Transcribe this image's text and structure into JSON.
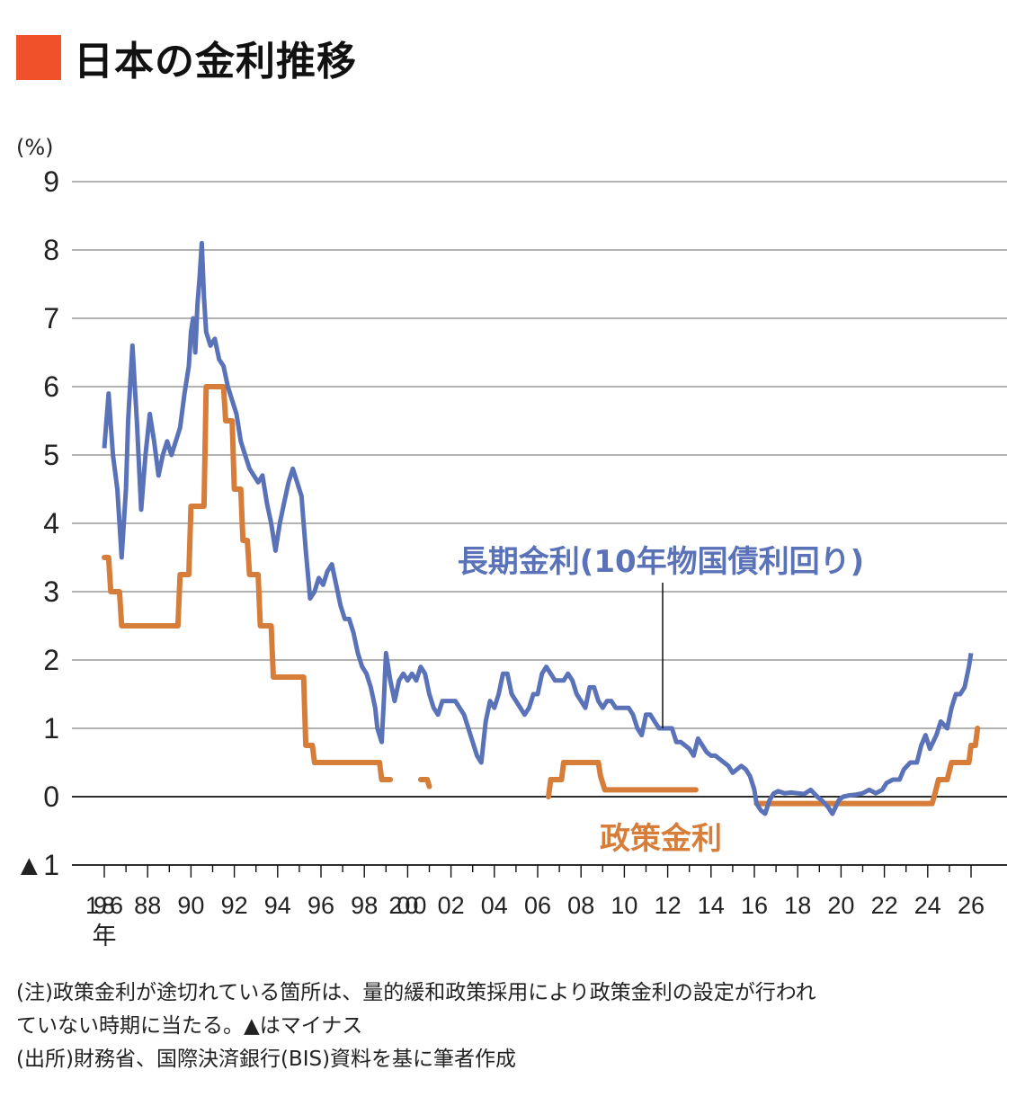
{
  "title": "日本の金利推移",
  "colors": {
    "title_mark": "#f0502a",
    "long_rate": "#5a72b8",
    "policy_rate": "#d67d3a",
    "grid": "#9a9a9a",
    "axis": "#111111"
  },
  "chart_data": {
    "type": "line",
    "unit_label": "(%)",
    "ylim": [
      -1,
      9
    ],
    "y_ticks": [
      {
        "v": 9,
        "label": "9"
      },
      {
        "v": 8,
        "label": "8"
      },
      {
        "v": 7,
        "label": "7"
      },
      {
        "v": 6,
        "label": "6"
      },
      {
        "v": 5,
        "label": "5"
      },
      {
        "v": 4,
        "label": "4"
      },
      {
        "v": 3,
        "label": "3"
      },
      {
        "v": 2,
        "label": "2"
      },
      {
        "v": 1,
        "label": "1"
      },
      {
        "v": 0,
        "label": "0"
      },
      {
        "v": -1,
        "label": "▲1"
      }
    ],
    "xlim": [
      1985.5,
      2026.5
    ],
    "x_ticks": [
      {
        "v": 1986,
        "label": "1986"
      },
      {
        "v": 1988,
        "label": "88"
      },
      {
        "v": 1990,
        "label": "90"
      },
      {
        "v": 1992,
        "label": "92"
      },
      {
        "v": 1994,
        "label": "94"
      },
      {
        "v": 1996,
        "label": "96"
      },
      {
        "v": 1998,
        "label": "98"
      },
      {
        "v": 2000,
        "label": "2000"
      },
      {
        "v": 2002,
        "label": "02"
      },
      {
        "v": 2004,
        "label": "04"
      },
      {
        "v": 2006,
        "label": "06"
      },
      {
        "v": 2008,
        "label": "08"
      },
      {
        "v": 2010,
        "label": "10"
      },
      {
        "v": 2012,
        "label": "12"
      },
      {
        "v": 2014,
        "label": "14"
      },
      {
        "v": 2016,
        "label": "16"
      },
      {
        "v": 2018,
        "label": "18"
      },
      {
        "v": 2020,
        "label": "20"
      },
      {
        "v": 2022,
        "label": "22"
      },
      {
        "v": 2024,
        "label": "24"
      },
      {
        "v": 2026,
        "label": "26"
      }
    ],
    "x_unit": "年",
    "series": [
      {
        "name": "長期金利(10年物国債利回り)",
        "points": [
          [
            1986.0,
            5.1
          ],
          [
            1986.2,
            5.9
          ],
          [
            1986.4,
            5.0
          ],
          [
            1986.6,
            4.5
          ],
          [
            1986.8,
            3.5
          ],
          [
            1987.0,
            4.5
          ],
          [
            1987.1,
            5.5
          ],
          [
            1987.3,
            6.6
          ],
          [
            1987.5,
            5.5
          ],
          [
            1987.7,
            4.2
          ],
          [
            1987.9,
            5.0
          ],
          [
            1988.1,
            5.6
          ],
          [
            1988.3,
            5.2
          ],
          [
            1988.5,
            4.7
          ],
          [
            1988.7,
            5.0
          ],
          [
            1988.9,
            5.2
          ],
          [
            1989.1,
            5.0
          ],
          [
            1989.3,
            5.2
          ],
          [
            1989.5,
            5.4
          ],
          [
            1989.7,
            5.9
          ],
          [
            1989.9,
            6.3
          ],
          [
            1990.0,
            6.8
          ],
          [
            1990.1,
            7.0
          ],
          [
            1990.2,
            6.5
          ],
          [
            1990.3,
            7.2
          ],
          [
            1990.4,
            7.6
          ],
          [
            1990.5,
            8.1
          ],
          [
            1990.6,
            7.3
          ],
          [
            1990.7,
            6.8
          ],
          [
            1990.9,
            6.6
          ],
          [
            1991.1,
            6.7
          ],
          [
            1991.3,
            6.4
          ],
          [
            1991.5,
            6.3
          ],
          [
            1991.7,
            6.0
          ],
          [
            1991.9,
            5.8
          ],
          [
            1992.1,
            5.6
          ],
          [
            1992.3,
            5.2
          ],
          [
            1992.5,
            5.0
          ],
          [
            1992.7,
            4.8
          ],
          [
            1992.9,
            4.7
          ],
          [
            1993.1,
            4.6
          ],
          [
            1993.3,
            4.7
          ],
          [
            1993.5,
            4.3
          ],
          [
            1993.7,
            4.0
          ],
          [
            1993.9,
            3.6
          ],
          [
            1994.1,
            4.0
          ],
          [
            1994.3,
            4.3
          ],
          [
            1994.5,
            4.6
          ],
          [
            1994.7,
            4.8
          ],
          [
            1994.9,
            4.6
          ],
          [
            1995.1,
            4.4
          ],
          [
            1995.3,
            3.6
          ],
          [
            1995.5,
            2.9
          ],
          [
            1995.7,
            3.0
          ],
          [
            1995.9,
            3.2
          ],
          [
            1996.1,
            3.1
          ],
          [
            1996.3,
            3.3
          ],
          [
            1996.5,
            3.4
          ],
          [
            1996.7,
            3.1
          ],
          [
            1996.9,
            2.8
          ],
          [
            1997.1,
            2.6
          ],
          [
            1997.3,
            2.6
          ],
          [
            1997.5,
            2.4
          ],
          [
            1997.7,
            2.1
          ],
          [
            1997.9,
            1.9
          ],
          [
            1998.1,
            1.8
          ],
          [
            1998.3,
            1.6
          ],
          [
            1998.5,
            1.3
          ],
          [
            1998.6,
            1.0
          ],
          [
            1998.8,
            0.8
          ],
          [
            1998.9,
            1.4
          ],
          [
            1999.0,
            2.1
          ],
          [
            1999.2,
            1.7
          ],
          [
            1999.4,
            1.4
          ],
          [
            1999.6,
            1.7
          ],
          [
            1999.8,
            1.8
          ],
          [
            2000.0,
            1.7
          ],
          [
            2000.2,
            1.8
          ],
          [
            2000.4,
            1.7
          ],
          [
            2000.6,
            1.9
          ],
          [
            2000.8,
            1.8
          ],
          [
            2001.0,
            1.5
          ],
          [
            2001.2,
            1.3
          ],
          [
            2001.4,
            1.2
          ],
          [
            2001.6,
            1.4
          ],
          [
            2001.8,
            1.4
          ],
          [
            2002.0,
            1.4
          ],
          [
            2002.2,
            1.4
          ],
          [
            2002.4,
            1.3
          ],
          [
            2002.6,
            1.2
          ],
          [
            2002.8,
            1.0
          ],
          [
            2003.0,
            0.8
          ],
          [
            2003.2,
            0.6
          ],
          [
            2003.4,
            0.5
          ],
          [
            2003.6,
            1.1
          ],
          [
            2003.8,
            1.4
          ],
          [
            2004.0,
            1.3
          ],
          [
            2004.2,
            1.5
          ],
          [
            2004.4,
            1.8
          ],
          [
            2004.6,
            1.8
          ],
          [
            2004.8,
            1.5
          ],
          [
            2005.0,
            1.4
          ],
          [
            2005.2,
            1.3
          ],
          [
            2005.4,
            1.2
          ],
          [
            2005.6,
            1.3
          ],
          [
            2005.8,
            1.5
          ],
          [
            2006.0,
            1.5
          ],
          [
            2006.2,
            1.8
          ],
          [
            2006.4,
            1.9
          ],
          [
            2006.6,
            1.8
          ],
          [
            2006.8,
            1.7
          ],
          [
            2007.0,
            1.7
          ],
          [
            2007.2,
            1.7
          ],
          [
            2007.4,
            1.8
          ],
          [
            2007.6,
            1.7
          ],
          [
            2007.8,
            1.5
          ],
          [
            2008.0,
            1.4
          ],
          [
            2008.2,
            1.3
          ],
          [
            2008.4,
            1.6
          ],
          [
            2008.6,
            1.6
          ],
          [
            2008.8,
            1.4
          ],
          [
            2009.0,
            1.3
          ],
          [
            2009.2,
            1.4
          ],
          [
            2009.4,
            1.4
          ],
          [
            2009.6,
            1.3
          ],
          [
            2009.8,
            1.3
          ],
          [
            2010.0,
            1.3
          ],
          [
            2010.2,
            1.3
          ],
          [
            2010.4,
            1.2
          ],
          [
            2010.6,
            1.0
          ],
          [
            2010.8,
            0.9
          ],
          [
            2011.0,
            1.2
          ],
          [
            2011.2,
            1.2
          ],
          [
            2011.4,
            1.1
          ],
          [
            2011.6,
            1.0
          ],
          [
            2011.8,
            1.0
          ],
          [
            2012.0,
            1.0
          ],
          [
            2012.2,
            1.0
          ],
          [
            2012.4,
            0.8
          ],
          [
            2012.6,
            0.8
          ],
          [
            2012.8,
            0.75
          ],
          [
            2013.0,
            0.7
          ],
          [
            2013.2,
            0.6
          ],
          [
            2013.4,
            0.85
          ],
          [
            2013.6,
            0.75
          ],
          [
            2013.8,
            0.65
          ],
          [
            2014.0,
            0.6
          ],
          [
            2014.2,
            0.6
          ],
          [
            2014.4,
            0.55
          ],
          [
            2014.6,
            0.5
          ],
          [
            2014.8,
            0.45
          ],
          [
            2015.0,
            0.35
          ],
          [
            2015.2,
            0.4
          ],
          [
            2015.4,
            0.45
          ],
          [
            2015.6,
            0.4
          ],
          [
            2015.8,
            0.3
          ],
          [
            2016.0,
            0.1
          ],
          [
            2016.1,
            -0.1
          ],
          [
            2016.3,
            -0.2
          ],
          [
            2016.5,
            -0.25
          ],
          [
            2016.7,
            -0.05
          ],
          [
            2016.9,
            0.05
          ],
          [
            2017.1,
            0.08
          ],
          [
            2017.4,
            0.05
          ],
          [
            2017.7,
            0.06
          ],
          [
            2018.0,
            0.05
          ],
          [
            2018.3,
            0.04
          ],
          [
            2018.6,
            0.1
          ],
          [
            2018.9,
            0.0
          ],
          [
            2019.1,
            -0.05
          ],
          [
            2019.4,
            -0.15
          ],
          [
            2019.6,
            -0.25
          ],
          [
            2019.9,
            -0.05
          ],
          [
            2020.1,
            0.0
          ],
          [
            2020.4,
            0.02
          ],
          [
            2020.7,
            0.03
          ],
          [
            2021.0,
            0.05
          ],
          [
            2021.3,
            0.1
          ],
          [
            2021.6,
            0.05
          ],
          [
            2021.9,
            0.1
          ],
          [
            2022.1,
            0.2
          ],
          [
            2022.4,
            0.25
          ],
          [
            2022.7,
            0.25
          ],
          [
            2022.9,
            0.4
          ],
          [
            2023.2,
            0.5
          ],
          [
            2023.5,
            0.5
          ],
          [
            2023.7,
            0.75
          ],
          [
            2023.9,
            0.9
          ],
          [
            2024.1,
            0.7
          ],
          [
            2024.4,
            0.9
          ],
          [
            2024.6,
            1.1
          ],
          [
            2024.9,
            1.0
          ],
          [
            2025.1,
            1.3
          ],
          [
            2025.3,
            1.5
          ],
          [
            2025.5,
            1.5
          ],
          [
            2025.7,
            1.6
          ],
          [
            2025.9,
            1.9
          ],
          [
            2026.0,
            2.1
          ]
        ]
      },
      {
        "name": "政策金利",
        "segments": [
          [
            [
              1986.0,
              3.5
            ],
            [
              1986.2,
              3.5
            ],
            [
              1986.3,
              3.0
            ],
            [
              1986.7,
              3.0
            ],
            [
              1986.8,
              2.5
            ],
            [
              1987.1,
              2.5
            ],
            [
              1989.4,
              2.5
            ],
            [
              1989.5,
              3.25
            ],
            [
              1989.9,
              3.25
            ],
            [
              1990.0,
              4.25
            ],
            [
              1990.6,
              4.25
            ],
            [
              1990.7,
              6.0
            ],
            [
              1991.5,
              6.0
            ],
            [
              1991.6,
              5.5
            ],
            [
              1991.9,
              5.5
            ],
            [
              1992.0,
              4.5
            ],
            [
              1992.3,
              4.5
            ],
            [
              1992.4,
              3.75
            ],
            [
              1992.6,
              3.75
            ],
            [
              1992.7,
              3.25
            ],
            [
              1993.1,
              3.25
            ],
            [
              1993.2,
              2.5
            ],
            [
              1993.7,
              2.5
            ],
            [
              1993.8,
              1.75
            ],
            [
              1995.2,
              1.75
            ],
            [
              1995.3,
              0.75
            ],
            [
              1995.6,
              0.75
            ],
            [
              1995.7,
              0.5
            ],
            [
              1998.7,
              0.5
            ],
            [
              1998.8,
              0.25
            ],
            [
              1999.2,
              0.25
            ]
          ],
          [
            [
              2000.6,
              0.25
            ],
            [
              2000.9,
              0.25
            ],
            [
              2001.0,
              0.15
            ]
          ],
          [
            [
              2006.5,
              0.0
            ],
            [
              2006.6,
              0.25
            ],
            [
              2007.1,
              0.25
            ],
            [
              2007.2,
              0.5
            ],
            [
              2008.8,
              0.5
            ],
            [
              2008.9,
              0.3
            ],
            [
              2009.1,
              0.1
            ],
            [
              2010.8,
              0.1
            ],
            [
              2013.3,
              0.1
            ]
          ],
          [
            [
              2016.1,
              -0.1
            ],
            [
              2024.2,
              -0.1
            ],
            [
              2024.3,
              0.0
            ],
            [
              2024.5,
              0.25
            ],
            [
              2024.9,
              0.25
            ],
            [
              2025.1,
              0.5
            ],
            [
              2025.9,
              0.5
            ],
            [
              2026.0,
              0.75
            ],
            [
              2026.2,
              0.75
            ],
            [
              2026.3,
              1.0
            ]
          ]
        ]
      }
    ]
  },
  "notes": [
    "(注)政策金利が途切れている箇所は、量的緩和政策採用により政策金利の設定が行われ",
    "ていない時期に当たる。▲はマイナス",
    "(出所)財務省、国際決済銀行(BIS)資料を基に筆者作成"
  ]
}
